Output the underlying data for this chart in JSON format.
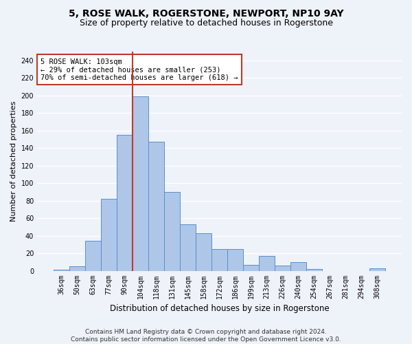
{
  "title": "5, ROSE WALK, ROGERSTONE, NEWPORT, NP10 9AY",
  "subtitle": "Size of property relative to detached houses in Rogerstone",
  "xlabel": "Distribution of detached houses by size in Rogerstone",
  "ylabel": "Number of detached properties",
  "categories": [
    "36sqm",
    "50sqm",
    "63sqm",
    "77sqm",
    "90sqm",
    "104sqm",
    "118sqm",
    "131sqm",
    "145sqm",
    "158sqm",
    "172sqm",
    "186sqm",
    "199sqm",
    "213sqm",
    "226sqm",
    "240sqm",
    "254sqm",
    "267sqm",
    "281sqm",
    "294sqm",
    "308sqm"
  ],
  "values": [
    1,
    5,
    34,
    82,
    155,
    199,
    147,
    90,
    53,
    43,
    25,
    25,
    7,
    17,
    6,
    10,
    2,
    0,
    0,
    0,
    3
  ],
  "bar_color": "#aec6e8",
  "bar_edge_color": "#5b8fc9",
  "subject_line_idx": 5,
  "subject_line_color": "#c0392b",
  "annotation_text": "5 ROSE WALK: 103sqm\n← 29% of detached houses are smaller (253)\n70% of semi-detached houses are larger (618) →",
  "annotation_box_color": "#ffffff",
  "annotation_box_edge": "#c0392b",
  "ylim": [
    0,
    250
  ],
  "yticks": [
    0,
    20,
    40,
    60,
    80,
    100,
    120,
    140,
    160,
    180,
    200,
    220,
    240
  ],
  "footer_line1": "Contains HM Land Registry data © Crown copyright and database right 2024.",
  "footer_line2": "Contains public sector information licensed under the Open Government Licence v3.0.",
  "background_color": "#eef2f9",
  "grid_color": "#ffffff",
  "title_fontsize": 10,
  "subtitle_fontsize": 9,
  "xlabel_fontsize": 8.5,
  "ylabel_fontsize": 8,
  "tick_fontsize": 7,
  "footer_fontsize": 6.5,
  "annotation_fontsize": 7.5
}
